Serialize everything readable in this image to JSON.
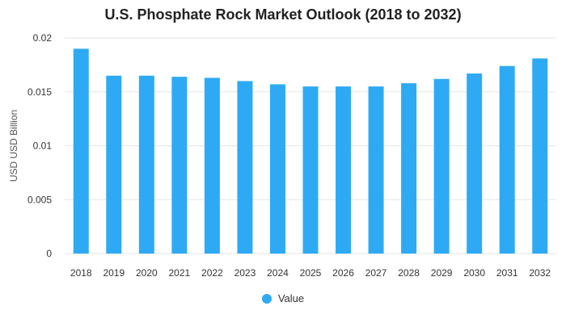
{
  "chart_data": {
    "type": "bar",
    "title": "U.S. Phosphate Rock Market Outlook (2018 to 2032)",
    "ylabel": "USD USD Billion",
    "xlabel": "",
    "categories": [
      "2018",
      "2019",
      "2020",
      "2021",
      "2022",
      "2023",
      "2024",
      "2025",
      "2026",
      "2027",
      "2028",
      "2029",
      "2030",
      "2031",
      "2032"
    ],
    "series": [
      {
        "name": "Value",
        "color": "#2eaaf5",
        "values": [
          0.019,
          0.0165,
          0.0165,
          0.0164,
          0.0163,
          0.016,
          0.0157,
          0.0155,
          0.0155,
          0.0155,
          0.0158,
          0.0162,
          0.0167,
          0.0174,
          0.0181
        ]
      }
    ],
    "ylim": [
      0,
      0.02
    ],
    "yticks": [
      "0",
      "0.005",
      "0.01",
      "0.015",
      "0.02"
    ],
    "grid": true,
    "legend_position": "bottom"
  }
}
